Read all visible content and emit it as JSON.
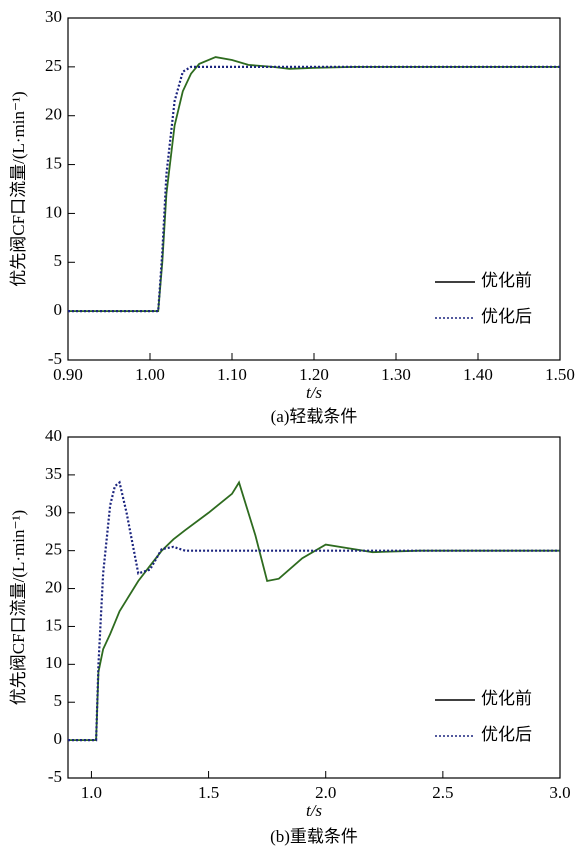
{
  "chart_data": [
    {
      "type": "line",
      "caption": "(a)轻载条件",
      "xlabel": "t/s",
      "ylabel": "优先阀CF口流量/(L·min⁻¹)",
      "x": [
        0.9,
        1.0,
        1.01,
        1.015,
        1.02,
        1.03,
        1.04,
        1.05,
        1.06,
        1.08,
        1.1,
        1.12,
        1.15,
        1.17,
        1.2,
        1.25,
        1.3,
        1.4,
        1.5
      ],
      "series": [
        {
          "name": "优化前",
          "color": "#2e6b1f",
          "dash": "solid",
          "values": [
            0,
            0,
            0,
            5,
            12,
            19,
            22.5,
            24.3,
            25.3,
            26,
            25.7,
            25.2,
            25,
            24.8,
            24.9,
            25,
            25,
            25,
            25
          ]
        },
        {
          "name": "优化后",
          "color": "#1a237e",
          "dash": "dotted",
          "values": [
            0,
            0,
            0,
            6,
            14,
            21.5,
            24.5,
            25,
            25,
            25,
            25,
            25,
            25,
            25,
            25,
            25,
            25,
            25,
            25
          ]
        }
      ],
      "xlim": [
        0.9,
        1.5
      ],
      "xticks": [
        {
          "value": 0.9,
          "label": "0.90"
        },
        {
          "value": 1.0,
          "label": "1.00"
        },
        {
          "value": 1.1,
          "label": "1.10"
        },
        {
          "value": 1.2,
          "label": "1.20"
        },
        {
          "value": 1.3,
          "label": "1.30"
        },
        {
          "value": 1.4,
          "label": "1.40"
        },
        {
          "value": 1.5,
          "label": "1.50"
        }
      ],
      "ylim": [
        -5,
        30
      ],
      "yticks": [
        -5,
        0,
        5,
        10,
        15,
        20,
        25,
        30
      ],
      "legend": "right"
    },
    {
      "type": "line",
      "caption": "(b)重载条件",
      "xlabel": "t/s",
      "ylabel": "优先阀CF口流量/(L·min⁻¹)",
      "x": [
        0.9,
        1.0,
        1.02,
        1.03,
        1.05,
        1.08,
        1.1,
        1.12,
        1.15,
        1.2,
        1.25,
        1.3,
        1.35,
        1.4,
        1.5,
        1.6,
        1.63,
        1.7,
        1.75,
        1.8,
        1.9,
        2.0,
        2.1,
        2.2,
        2.4,
        3.0
      ],
      "series": [
        {
          "name": "优化前",
          "color": "#2e6b1f",
          "dash": "solid",
          "values": [
            0,
            0,
            0,
            9,
            12,
            14,
            15.5,
            17,
            18.5,
            21,
            23,
            25,
            26.5,
            27.7,
            30,
            32.5,
            34,
            27,
            21,
            21.3,
            24,
            25.8,
            25.3,
            24.8,
            25,
            25
          ]
        },
        {
          "name": "优化后",
          "color": "#1a237e",
          "dash": "dotted",
          "values": [
            0,
            0,
            0,
            10,
            22,
            31,
            33.5,
            34,
            30,
            22,
            22.5,
            25.2,
            25.5,
            25,
            25,
            25,
            25,
            25,
            25,
            25,
            25,
            25,
            25,
            25,
            25,
            25
          ]
        }
      ],
      "xlim": [
        0.9,
        3.0
      ],
      "xticks": [
        {
          "value": 1.0,
          "label": "1.0"
        },
        {
          "value": 1.5,
          "label": "1.5"
        },
        {
          "value": 2.0,
          "label": "2.0"
        },
        {
          "value": 2.5,
          "label": "2.5"
        },
        {
          "value": 3.0,
          "label": "3.0"
        }
      ],
      "ylim": [
        -5,
        40
      ],
      "yticks": [
        -5,
        0,
        5,
        10,
        15,
        20,
        25,
        30,
        35,
        40
      ],
      "legend": "right"
    }
  ]
}
